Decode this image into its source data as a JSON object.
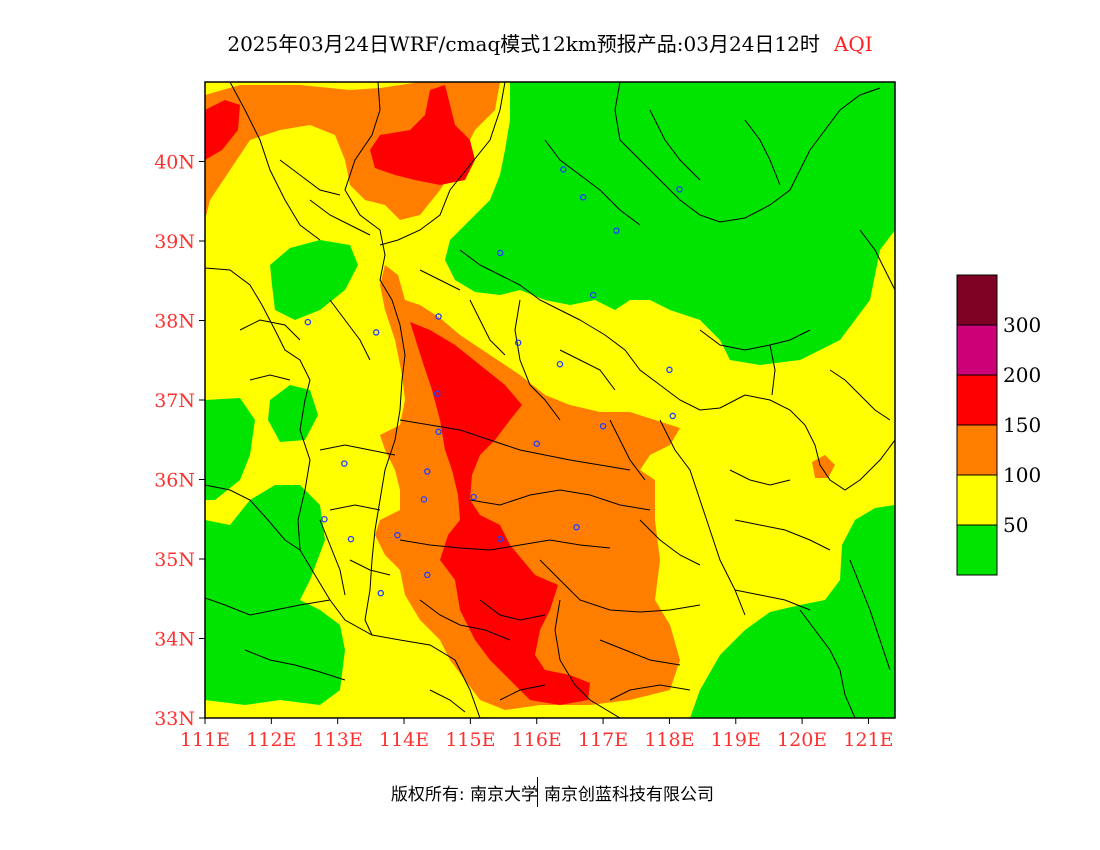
{
  "header": {
    "title": "2025年03月24日WRF/cmaq模式12km预报产品:03月24日12时",
    "product": "AQI"
  },
  "map": {
    "lon_labels": [
      "111E",
      "112E",
      "113E",
      "114E",
      "115E",
      "116E",
      "117E",
      "118E",
      "119E",
      "120E",
      "121E"
    ],
    "lat_labels": [
      "33N",
      "34N",
      "35N",
      "36N",
      "37N",
      "38N",
      "39N",
      "40N"
    ],
    "lon_range": [
      111,
      121.4
    ],
    "lat_range": [
      33,
      41
    ],
    "city_markers": [
      {
        "lon": 116.4,
        "lat": 39.9
      },
      {
        "lon": 116.7,
        "lat": 39.55
      },
      {
        "lon": 117.2,
        "lat": 39.13
      },
      {
        "lon": 118.15,
        "lat": 39.65
      },
      {
        "lon": 115.45,
        "lat": 38.85
      },
      {
        "lon": 116.85,
        "lat": 38.32
      },
      {
        "lon": 112.55,
        "lat": 37.98
      },
      {
        "lon": 113.58,
        "lat": 37.85
      },
      {
        "lon": 114.52,
        "lat": 38.05
      },
      {
        "lon": 115.72,
        "lat": 37.72
      },
      {
        "lon": 116.35,
        "lat": 37.45
      },
      {
        "lon": 118.0,
        "lat": 37.38
      },
      {
        "lon": 114.5,
        "lat": 37.08
      },
      {
        "lon": 114.52,
        "lat": 36.6
      },
      {
        "lon": 116.0,
        "lat": 36.45
      },
      {
        "lon": 117.0,
        "lat": 36.67
      },
      {
        "lon": 118.05,
        "lat": 36.8
      },
      {
        "lon": 113.1,
        "lat": 36.2
      },
      {
        "lon": 114.35,
        "lat": 36.1
      },
      {
        "lon": 114.3,
        "lat": 35.75
      },
      {
        "lon": 115.05,
        "lat": 35.78
      },
      {
        "lon": 112.8,
        "lat": 35.5
      },
      {
        "lon": 113.2,
        "lat": 35.25
      },
      {
        "lon": 113.9,
        "lat": 35.3
      },
      {
        "lon": 115.45,
        "lat": 35.25
      },
      {
        "lon": 116.6,
        "lat": 35.4
      },
      {
        "lon": 114.35,
        "lat": 34.8
      },
      {
        "lon": 113.65,
        "lat": 34.57
      }
    ]
  },
  "legend": {
    "colors": [
      "#00e400",
      "#ffff00",
      "#ff7e00",
      "#ff0000",
      "#cc0077",
      "#7e0023"
    ],
    "labels": [
      "50",
      "100",
      "150",
      "200",
      "300"
    ]
  },
  "footer": {
    "left": "版权所有: 南京大学",
    "right": "南京创蓝科技有限公司"
  }
}
